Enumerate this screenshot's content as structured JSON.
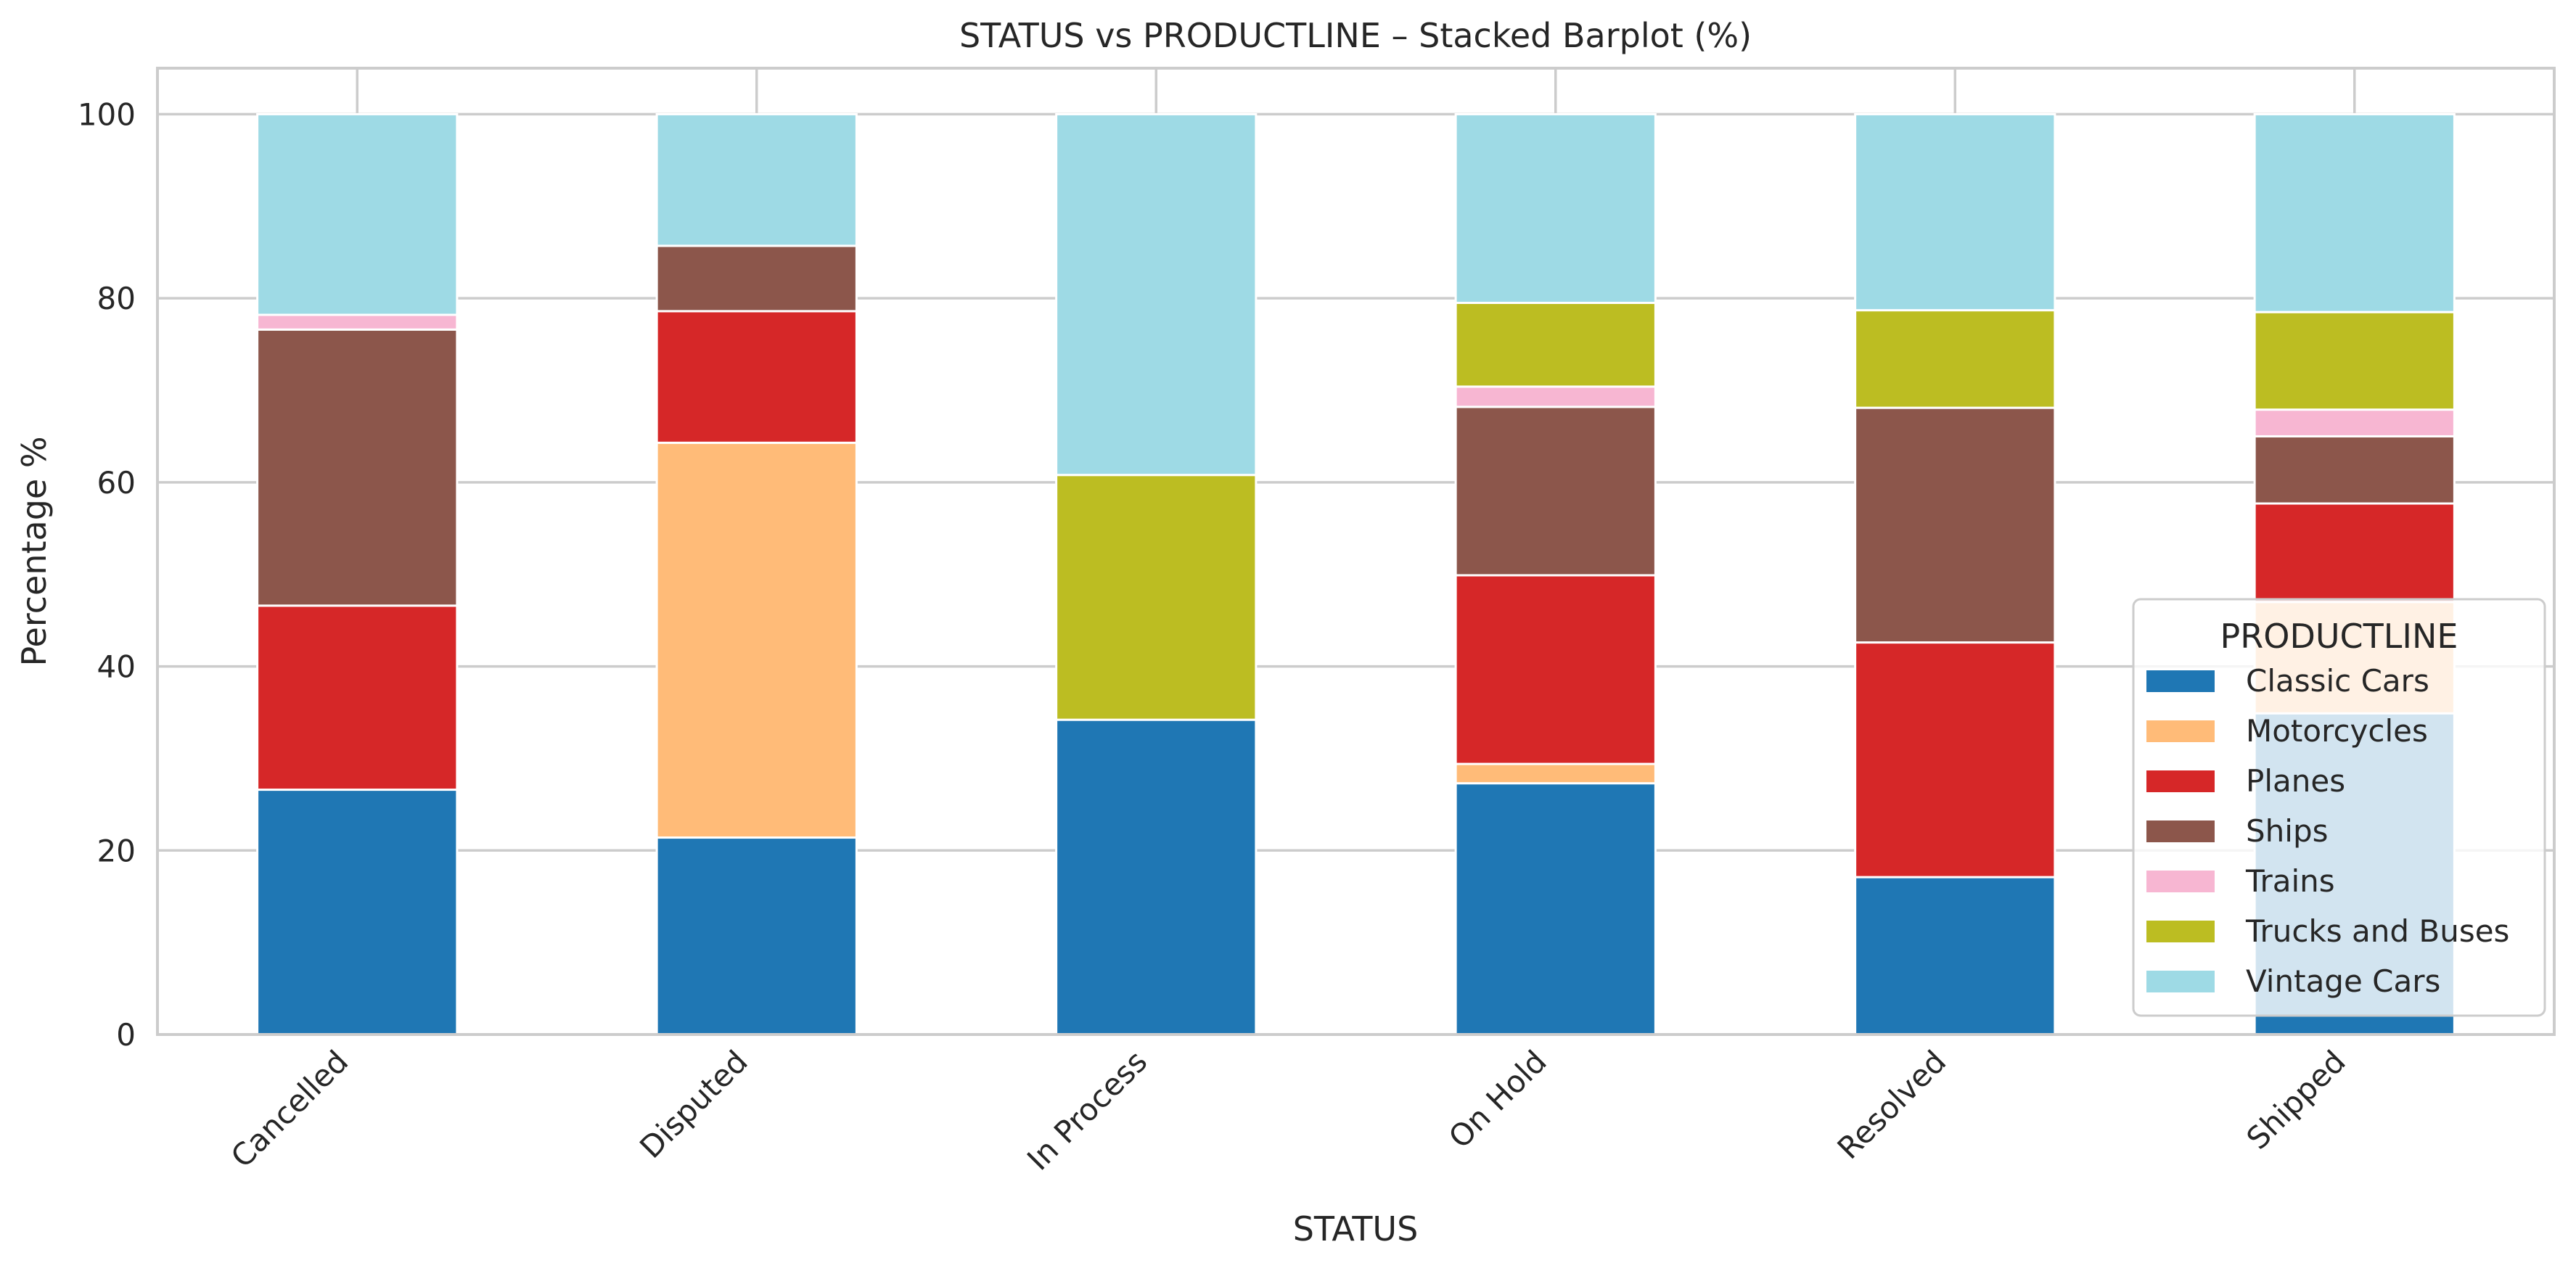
{
  "chart_data": {
    "type": "bar",
    "stacked": true,
    "title": "STATUS vs PRODUCTLINE – Stacked Barplot (%)",
    "xlabel": "STATUS",
    "ylabel": "Percentage %",
    "ylim": [
      0,
      105
    ],
    "yticks": [
      0,
      20,
      40,
      60,
      80,
      100
    ],
    "grid": true,
    "legend": {
      "title": "PRODUCTLINE",
      "placement": "lower-right"
    },
    "categories": [
      "Cancelled",
      "Disputed",
      "In Process",
      "On Hold",
      "Resolved",
      "Shipped"
    ],
    "series": [
      {
        "name": "Classic Cars",
        "color": "#1f77b4",
        "values": [
          26.6,
          21.4,
          34.2,
          27.3,
          17.1,
          34.9
        ]
      },
      {
        "name": "Motorcycles",
        "color": "#ffbb78",
        "values": [
          0,
          42.9,
          0,
          2.1,
          0,
          12.1
        ]
      },
      {
        "name": "Planes",
        "color": "#d62728",
        "values": [
          20.0,
          14.3,
          0,
          20.5,
          25.5,
          10.7
        ]
      },
      {
        "name": "Ships",
        "color": "#8c564b",
        "values": [
          30.0,
          7.1,
          0,
          18.3,
          25.5,
          7.3
        ]
      },
      {
        "name": "Trains",
        "color": "#f7b6d2",
        "values": [
          1.6,
          0,
          0,
          2.2,
          0,
          2.9
        ]
      },
      {
        "name": "Trucks and Buses",
        "color": "#bcbd22",
        "values": [
          0,
          0,
          26.6,
          9.1,
          10.6,
          10.6
        ]
      },
      {
        "name": "Vintage Cars",
        "color": "#9edae5",
        "values": [
          21.8,
          14.3,
          39.2,
          20.5,
          21.3,
          21.5
        ]
      }
    ]
  }
}
